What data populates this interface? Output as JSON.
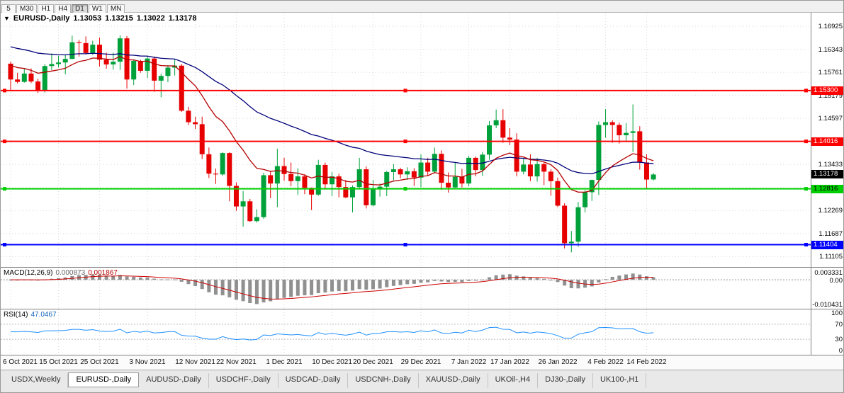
{
  "toolbar": {
    "timeframes": [
      {
        "label": "5",
        "active": false
      },
      {
        "label": "M30",
        "active": false
      },
      {
        "label": "H1",
        "active": false
      },
      {
        "label": "H4",
        "active": false
      },
      {
        "label": "D1",
        "active": true
      },
      {
        "label": "W1",
        "active": false
      },
      {
        "label": "MN",
        "active": false
      }
    ]
  },
  "chart": {
    "collapse_arrow": "▼",
    "title": "EURUSD-,Daily",
    "open": "1.13053",
    "high": "1.13215",
    "low": "1.13022",
    "close": "1.13178",
    "price_axis": [
      "1.16925",
      "1.16343",
      "1.15761",
      "1.15179",
      "1.14597",
      "1.14015",
      "1.13433",
      "1.12851",
      "1.12269",
      "1.11687",
      "1.11105"
    ],
    "tags": [
      {
        "label": "1.15300",
        "bg": "#ff0000",
        "fg": "#ffffff"
      },
      {
        "label": "1.14016",
        "bg": "#ff0000",
        "fg": "#ffffff"
      },
      {
        "label": "1.12816",
        "bg": "#00d000",
        "fg": "#000000"
      },
      {
        "label": "1.11404",
        "bg": "#0000ff",
        "fg": "#ffffff"
      }
    ],
    "current_tag": {
      "label": "1.13178",
      "bg": "#000000",
      "fg": "#ffffff"
    }
  },
  "macd_panel": {
    "name": "MACD(12,26,9)",
    "value_main": "0.000873",
    "value_signal": "0.001867",
    "axis_top": "0.003331",
    "axis_zero": "0.00",
    "axis_bottom": "-0.010431"
  },
  "rsi_panel": {
    "name": "RSI(14)",
    "value": "47.0467",
    "axis": [
      "100",
      "70",
      "30",
      "0"
    ]
  },
  "tabs": [
    {
      "label": "USDX,Weekly",
      "active": false
    },
    {
      "label": "EURUSD-,Daily",
      "active": true
    },
    {
      "label": "AUDUSD-,Daily",
      "active": false
    },
    {
      "label": "USDCHF-,Daily",
      "active": false
    },
    {
      "label": "USDCAD-,Daily",
      "active": false
    },
    {
      "label": "USDCNH-,Daily",
      "active": false
    },
    {
      "label": "XAUUSD-,Daily",
      "active": false
    },
    {
      "label": "UKOil-,H4",
      "active": false
    },
    {
      "label": "DJ30-,Daily",
      "active": false
    },
    {
      "label": "UK100-,H1",
      "active": false
    }
  ],
  "chart_data": {
    "type": "candlestick",
    "symbol": "EURUSD-,Daily",
    "ylim": [
      1.1093,
      1.1716
    ],
    "up_color": "#00a13a",
    "down_color": "#e60000",
    "grid_color": "#d9d9d9",
    "x_tick_labels": [
      "6 Oct 2021",
      "15 Oct 2021",
      "25 Oct 2021",
      "3 Nov 2021",
      "12 Nov 2021",
      "22 Nov 2021",
      "1 Dec 2021",
      "10 Dec 2021",
      "20 Dec 2021",
      "29 Dec 2021",
      "7 Jan 2022",
      "17 Jan 2022",
      "26 Jan 2022",
      "4 Feb 2022",
      "14 Feb 2022"
    ],
    "x_tick_indices": [
      0,
      7,
      13,
      20,
      27,
      33,
      40,
      47,
      53,
      60,
      67,
      73,
      80,
      87,
      93
    ],
    "hlines": [
      {
        "price": 1.153,
        "color": "#ff0000"
      },
      {
        "price": 1.14016,
        "color": "#ff0000"
      },
      {
        "price": 1.12816,
        "color": "#00d000"
      },
      {
        "price": 1.11404,
        "color": "#0000ff"
      }
    ],
    "moving_averages": [
      {
        "period": 40,
        "color": "#00007a",
        "seed": 1.1645
      },
      {
        "period": 13,
        "color": "#b40000",
        "seed": 1.16
      }
    ],
    "indicators": [
      {
        "name": "MACD",
        "params": [
          12,
          26,
          9
        ],
        "current_main": 0.000873,
        "current_signal": 0.001867,
        "hist_color": "#909090",
        "signal_color": "#cc0000"
      },
      {
        "name": "RSI",
        "params": [
          14
        ],
        "current": 47.0467,
        "color": "#1e90ff",
        "levels": [
          70,
          30
        ]
      }
    ],
    "ohlc": [
      [
        1.1598,
        1.1603,
        1.1529,
        1.1558
      ],
      [
        1.1558,
        1.1575,
        1.1548,
        1.1552
      ],
      [
        1.1552,
        1.1586,
        1.155,
        1.1573
      ],
      [
        1.1573,
        1.1586,
        1.1549,
        1.1553
      ],
      [
        1.1553,
        1.156,
        1.1524,
        1.153
      ],
      [
        1.153,
        1.1597,
        1.1525,
        1.1592
      ],
      [
        1.1592,
        1.1624,
        1.1582,
        1.1597
      ],
      [
        1.1597,
        1.1618,
        1.1588,
        1.1601
      ],
      [
        1.1601,
        1.1621,
        1.1571,
        1.161
      ],
      [
        1.161,
        1.1669,
        1.1609,
        1.1652
      ],
      [
        1.1652,
        1.1658,
        1.1616,
        1.165
      ],
      [
        1.165,
        1.1667,
        1.1621,
        1.1625
      ],
      [
        1.1625,
        1.1656,
        1.162,
        1.1646
      ],
      [
        1.1646,
        1.1664,
        1.1591,
        1.1608
      ],
      [
        1.1608,
        1.1626,
        1.1585,
        1.1596
      ],
      [
        1.1596,
        1.1626,
        1.1583,
        1.1603
      ],
      [
        1.1603,
        1.167,
        1.1582,
        1.1662
      ],
      [
        1.1662,
        1.1668,
        1.1535,
        1.1558
      ],
      [
        1.1558,
        1.1609,
        1.1544,
        1.1605
      ],
      [
        1.1605,
        1.1608,
        1.1575,
        1.158
      ],
      [
        1.158,
        1.1616,
        1.1562,
        1.1611
      ],
      [
        1.1611,
        1.1616,
        1.1527,
        1.1555
      ],
      [
        1.1555,
        1.1573,
        1.1513,
        1.1567
      ],
      [
        1.1567,
        1.1594,
        1.1551,
        1.1588
      ],
      [
        1.1588,
        1.1609,
        1.1568,
        1.1593
      ],
      [
        1.1593,
        1.1597,
        1.1476,
        1.1479
      ],
      [
        1.1479,
        1.1489,
        1.1443,
        1.145
      ],
      [
        1.145,
        1.1464,
        1.1433,
        1.1445
      ],
      [
        1.1445,
        1.1464,
        1.1357,
        1.1369
      ],
      [
        1.1369,
        1.1386,
        1.1309,
        1.132
      ],
      [
        1.132,
        1.1333,
        1.1294,
        1.1318
      ],
      [
        1.1318,
        1.1374,
        1.1314,
        1.1372
      ],
      [
        1.1372,
        1.1374,
        1.125,
        1.1289
      ],
      [
        1.1289,
        1.1298,
        1.1226,
        1.1237
      ],
      [
        1.1237,
        1.1276,
        1.1186,
        1.125
      ],
      [
        1.125,
        1.1256,
        1.1198,
        1.12
      ],
      [
        1.12,
        1.123,
        1.1196,
        1.121
      ],
      [
        1.121,
        1.1322,
        1.1206,
        1.1316
      ],
      [
        1.1316,
        1.1327,
        1.1258,
        1.1295
      ],
      [
        1.1295,
        1.1383,
        1.1235,
        1.1339
      ],
      [
        1.1339,
        1.136,
        1.1302,
        1.1319
      ],
      [
        1.1319,
        1.1348,
        1.1288,
        1.1301
      ],
      [
        1.1301,
        1.1334,
        1.1266,
        1.1313
      ],
      [
        1.1313,
        1.1319,
        1.1268,
        1.1284
      ],
      [
        1.1284,
        1.1285,
        1.1228,
        1.1267
      ],
      [
        1.1267,
        1.1355,
        1.1264,
        1.1342
      ],
      [
        1.1342,
        1.1348,
        1.128,
        1.1293
      ],
      [
        1.1293,
        1.1324,
        1.1263,
        1.1313
      ],
      [
        1.1313,
        1.132,
        1.126,
        1.1286
      ],
      [
        1.1286,
        1.1304,
        1.1258,
        1.126
      ],
      [
        1.126,
        1.129,
        1.1222,
        1.1286
      ],
      [
        1.1286,
        1.136,
        1.128,
        1.1331
      ],
      [
        1.1331,
        1.1338,
        1.1232,
        1.124
      ],
      [
        1.124,
        1.1304,
        1.1237,
        1.128
      ],
      [
        1.128,
        1.1295,
        1.1262,
        1.1287
      ],
      [
        1.1287,
        1.1327,
        1.1263,
        1.1324
      ],
      [
        1.1324,
        1.1344,
        1.1303,
        1.1331
      ],
      [
        1.1331,
        1.1335,
        1.1308,
        1.1318
      ],
      [
        1.1318,
        1.1336,
        1.1304,
        1.1326
      ],
      [
        1.1326,
        1.1334,
        1.1289,
        1.131
      ],
      [
        1.131,
        1.1369,
        1.1286,
        1.1348
      ],
      [
        1.1348,
        1.136,
        1.1315,
        1.1325
      ],
      [
        1.1325,
        1.1386,
        1.1321,
        1.137
      ],
      [
        1.137,
        1.1379,
        1.1279,
        1.1297
      ],
      [
        1.1297,
        1.1323,
        1.1272,
        1.1285
      ],
      [
        1.1285,
        1.1347,
        1.1284,
        1.1312
      ],
      [
        1.1312,
        1.1332,
        1.1285,
        1.1295
      ],
      [
        1.1295,
        1.1365,
        1.1288,
        1.136
      ],
      [
        1.136,
        1.1363,
        1.1313,
        1.1329
      ],
      [
        1.1329,
        1.1375,
        1.1314,
        1.1368
      ],
      [
        1.1368,
        1.1453,
        1.1355,
        1.1442
      ],
      [
        1.1442,
        1.1482,
        1.1435,
        1.1455
      ],
      [
        1.1455,
        1.1483,
        1.1398,
        1.1411
      ],
      [
        1.1411,
        1.1435,
        1.1392,
        1.1406
      ],
      [
        1.1406,
        1.1422,
        1.1313,
        1.1325
      ],
      [
        1.1325,
        1.1357,
        1.1318,
        1.1343
      ],
      [
        1.1343,
        1.1369,
        1.1301,
        1.1313
      ],
      [
        1.1313,
        1.136,
        1.13,
        1.1344
      ],
      [
        1.1344,
        1.1348,
        1.1291,
        1.1325
      ],
      [
        1.1325,
        1.1331,
        1.1264,
        1.1301
      ],
      [
        1.1301,
        1.131,
        1.1235,
        1.1239
      ],
      [
        1.1239,
        1.1245,
        1.1131,
        1.1144
      ],
      [
        1.1144,
        1.1175,
        1.1121,
        1.1148
      ],
      [
        1.1148,
        1.1248,
        1.1135,
        1.1235
      ],
      [
        1.1235,
        1.1279,
        1.1222,
        1.1273
      ],
      [
        1.1273,
        1.1305,
        1.1251,
        1.1304
      ],
      [
        1.1304,
        1.1452,
        1.1266,
        1.1443
      ],
      [
        1.1443,
        1.1483,
        1.1411,
        1.145
      ],
      [
        1.145,
        1.1455,
        1.1398,
        1.1443
      ],
      [
        1.1443,
        1.1449,
        1.1396,
        1.1417
      ],
      [
        1.1417,
        1.1448,
        1.1403,
        1.1423
      ],
      [
        1.1423,
        1.1495,
        1.1375,
        1.1427
      ],
      [
        1.1427,
        1.144,
        1.133,
        1.1348
      ],
      [
        1.1348,
        1.1369,
        1.128,
        1.1305
      ],
      [
        1.13053,
        1.13215,
        1.13022,
        1.13178
      ]
    ]
  }
}
